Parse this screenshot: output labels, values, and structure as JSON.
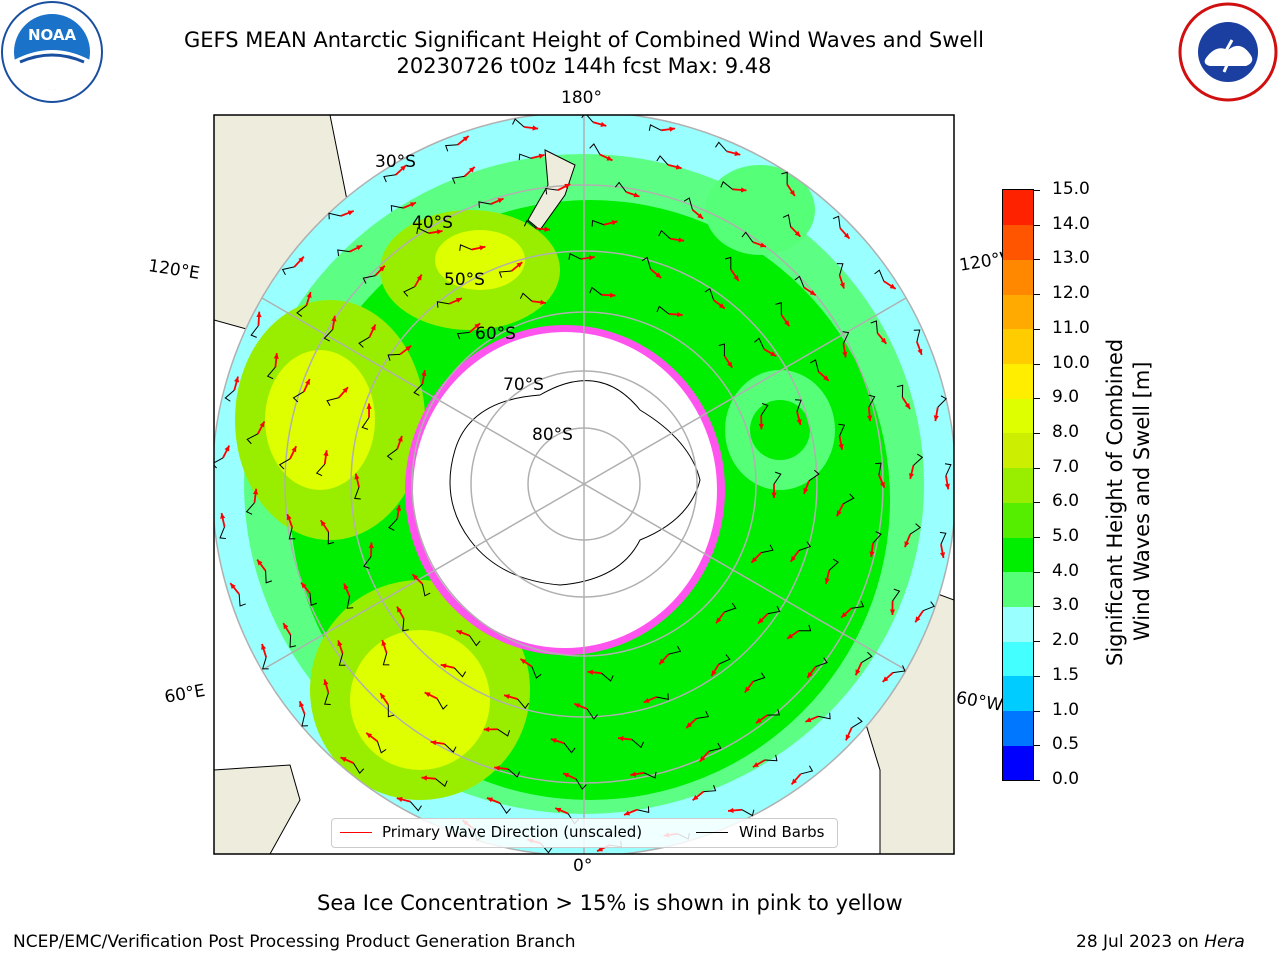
{
  "header": {
    "title_line1": "GEFS MEAN Antarctic Significant Height of Combined Wind Waves and Swell",
    "title_line2": "20230726 t00z 144h fcst   Max: 9.48"
  },
  "map": {
    "projection": "south polar stereographic",
    "longitude_labels": {
      "lon_180": "180°",
      "lon_0": "0°",
      "lon_120e": "120°E",
      "lon_120w": "120°W",
      "lon_60e": "60°E",
      "lon_60w": "60°W"
    },
    "latitude_labels": [
      "30°S",
      "40°S",
      "50°S",
      "60°S",
      "70°S",
      "80°S"
    ],
    "field_colors": {
      "land": "#eeecdc",
      "ice_free_ocean_low": "#99ffff",
      "green": "#00ee00",
      "light_green": "#55ff77",
      "lime": "#99ee00",
      "yellow": "#ddff00",
      "sea_ice": "#ff55ee",
      "antarctic_interior": "#ffffff"
    },
    "arrow_color": "#ff0000",
    "barb_color": "#000000"
  },
  "legend": {
    "primary_wave": "Primary Wave Direction (unscaled)",
    "wind_barbs": "Wind Barbs"
  },
  "colorbar": {
    "label_line1": "Significant Height of Combined",
    "label_line2": "Wind Waves and Swell [m]",
    "ticks": [
      "0.0",
      "0.5",
      "1.0",
      "1.5",
      "2.0",
      "3.0",
      "4.0",
      "5.0",
      "6.0",
      "7.0",
      "8.0",
      "9.0",
      "10.0",
      "11.0",
      "12.0",
      "13.0",
      "14.0",
      "15.0"
    ],
    "colors": [
      "#0000ff",
      "#0077ff",
      "#00ccff",
      "#44ffff",
      "#99ffff",
      "#55ff77",
      "#00ee00",
      "#55ee00",
      "#99ee00",
      "#ccee00",
      "#ddff00",
      "#ffee00",
      "#ffcc00",
      "#ffaa00",
      "#ff8800",
      "#ff5500",
      "#ff2200"
    ]
  },
  "caption": "Sea Ice Concentration > 15% is shown in pink to yellow",
  "footer": {
    "left": "NCEP/EMC/Verification Post Processing Product Generation Branch",
    "right_date": "28 Jul 2023 on ",
    "right_machine": "Hera"
  }
}
